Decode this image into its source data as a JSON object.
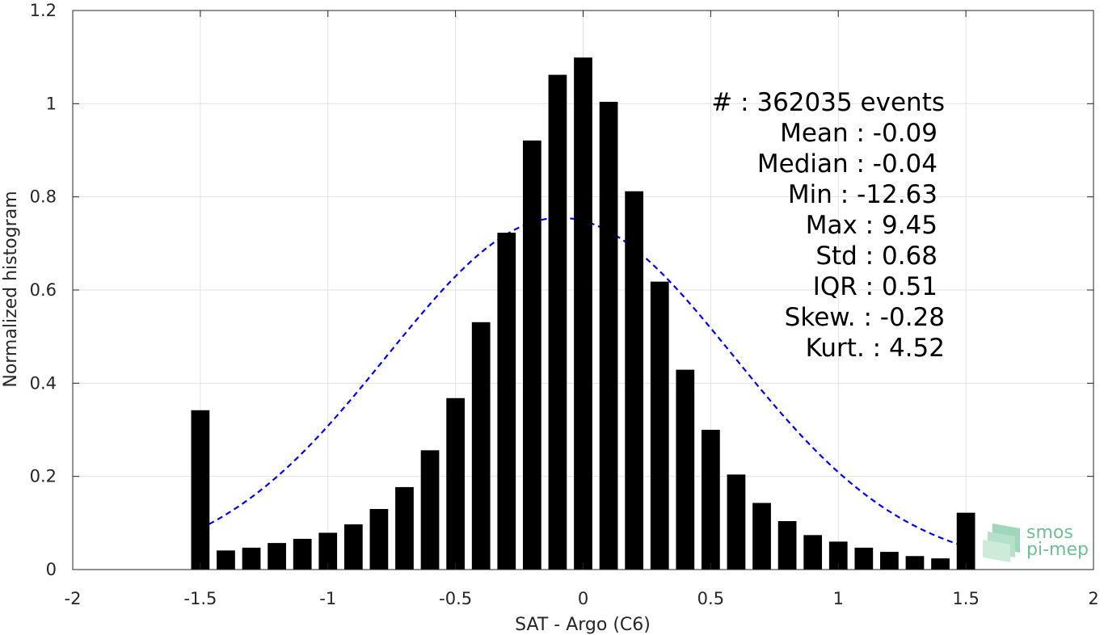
{
  "chart_data": {
    "type": "bar",
    "xlabel": "SAT - Argo (C6)",
    "ylabel": "Normalized histogram",
    "xlim": [
      -2,
      2
    ],
    "ylim": [
      0,
      1.2
    ],
    "xticks": [
      -2,
      -1.5,
      -1,
      -0.5,
      0,
      0.5,
      1,
      1.5,
      2
    ],
    "xtick_labels": [
      "-2",
      "-1.5",
      "-1",
      "-0.5",
      "0",
      "0.5",
      "1",
      "1.5",
      "2"
    ],
    "yticks": [
      0,
      0.2,
      0.4,
      0.6,
      0.8,
      1,
      1.2
    ],
    "ytick_labels": [
      "0",
      "0.2",
      "0.4",
      "0.6",
      "0.8",
      "1",
      "1.2"
    ],
    "grid": true,
    "bar_color": "#000000",
    "x": [
      -1.5,
      -1.4,
      -1.3,
      -1.2,
      -1.1,
      -1.0,
      -0.9,
      -0.8,
      -0.7,
      -0.6,
      -0.5,
      -0.4,
      -0.3,
      -0.2,
      -0.1,
      0.0,
      0.1,
      0.2,
      0.3,
      0.4,
      0.5,
      0.6,
      0.7,
      0.8,
      0.9,
      1.0,
      1.1,
      1.2,
      1.3,
      1.4,
      1.5
    ],
    "values": [
      0.342,
      0.041,
      0.047,
      0.057,
      0.066,
      0.079,
      0.097,
      0.13,
      0.177,
      0.256,
      0.368,
      0.531,
      0.723,
      0.921,
      1.062,
      1.099,
      1.004,
      0.812,
      0.618,
      0.429,
      0.3,
      0.204,
      0.143,
      0.104,
      0.074,
      0.06,
      0.047,
      0.038,
      0.029,
      0.024,
      0.122
    ],
    "fit": {
      "type": "gaussian",
      "mean": -0.09,
      "std": 0.68,
      "peak": 0.755,
      "x_range": [
        -1.5,
        1.5
      ],
      "color": "#0000ff",
      "style": "dashed"
    },
    "annotations": [
      "#  : 362035 events",
      "Mean : -0.09",
      "Median : -0.04",
      "Min : -12.63",
      "Max : 9.45",
      "Std : 0.68",
      "IQR : 0.51",
      "Skew. : -0.28",
      "Kurt. : 4.52"
    ]
  },
  "logo": {
    "line1": "smos",
    "line2": "pi-mep",
    "color": "#6fbf95"
  }
}
